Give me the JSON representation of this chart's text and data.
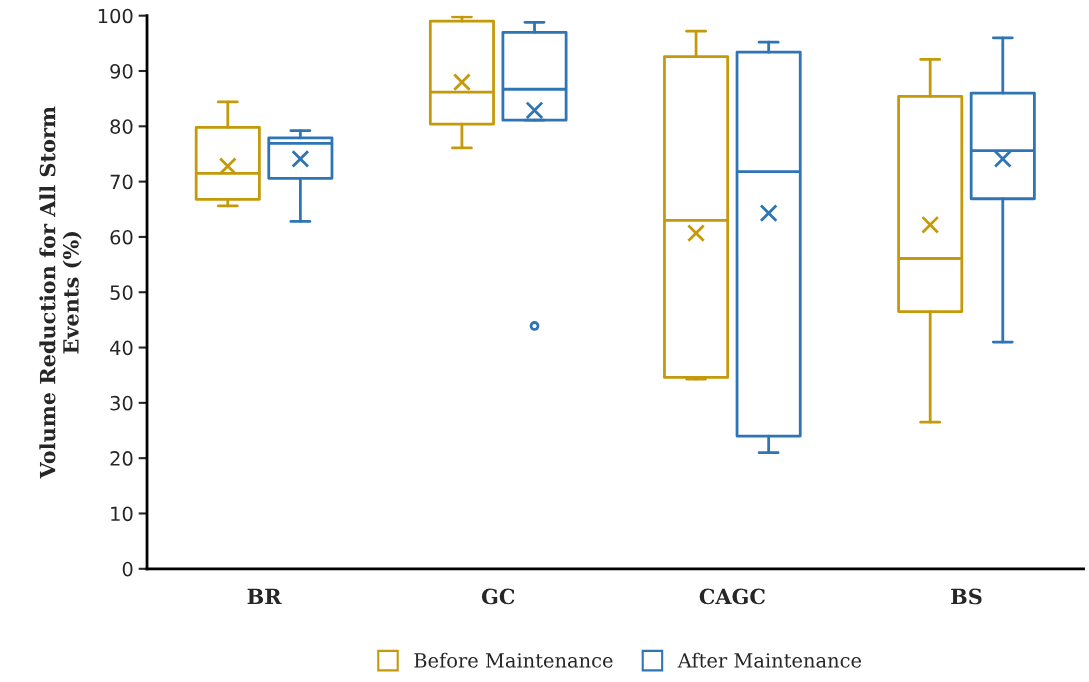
{
  "chart_data": {
    "type": "box",
    "ylabel": "Volume Reduction for All Storm\nEvents (%)",
    "categories": [
      "BR",
      "GC",
      "CAGC",
      "BS"
    ],
    "ylim": [
      0,
      100
    ],
    "yticks": [
      0,
      10,
      20,
      30,
      40,
      50,
      60,
      70,
      80,
      90,
      100
    ],
    "grid": false,
    "legend": "bottom",
    "series": [
      {
        "name": "Before Maintenance",
        "color": "#c59a0a",
        "boxes": [
          {
            "low": 65.6,
            "q1": 66.8,
            "median": 71.5,
            "q3": 79.8,
            "high": 84.4,
            "mean": 72.8
          },
          {
            "low": 76.1,
            "q1": 80.4,
            "median": 86.2,
            "q3": 99.0,
            "high": 99.8,
            "mean": 88.0
          },
          {
            "low": 34.3,
            "q1": 34.6,
            "median": 63.0,
            "q3": 92.6,
            "high": 97.2,
            "mean": 60.7
          },
          {
            "low": 26.5,
            "q1": 46.5,
            "median": 56.1,
            "q3": 85.4,
            "high": 92.1,
            "mean": 62.2
          }
        ]
      },
      {
        "name": "After Maintenance",
        "color": "#2e75b6",
        "boxes": [
          {
            "low": 62.8,
            "q1": 70.6,
            "median": 76.9,
            "q3": 77.9,
            "high": 79.2,
            "mean": 74.1
          },
          {
            "low": 81.1,
            "q1": 81.1,
            "median": 86.7,
            "q3": 97.0,
            "high": 98.8,
            "mean": 82.9,
            "outliers": [
              43.9
            ]
          },
          {
            "low": 21.0,
            "q1": 24.0,
            "median": 71.8,
            "q3": 93.4,
            "high": 95.2,
            "mean": 64.3
          },
          {
            "low": 41.0,
            "q1": 66.9,
            "median": 75.6,
            "q3": 86.0,
            "high": 96.0,
            "mean": 74.1
          }
        ]
      }
    ]
  }
}
